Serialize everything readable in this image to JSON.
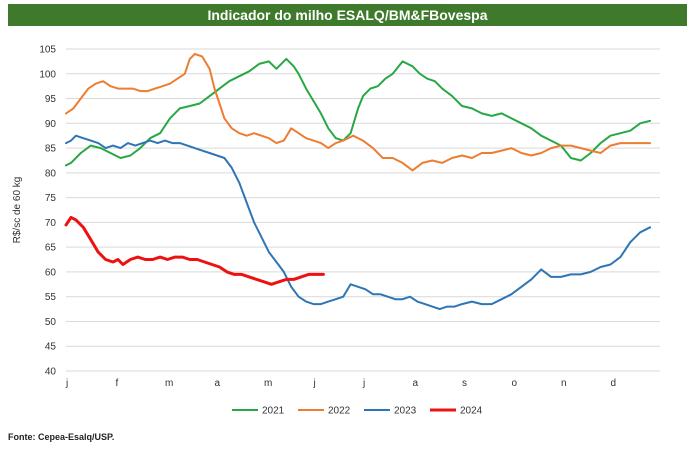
{
  "title": "Indicador do milho ESALQ/BM&FBovespa",
  "source": "Fonte: Cepea-Esalq/USP.",
  "chart_data": {
    "type": "line",
    "ylabel": "R$/sc de 60 kg",
    "xlabel": "",
    "ylim": [
      40,
      105
    ],
    "yticks": [
      40,
      45,
      50,
      55,
      60,
      65,
      70,
      75,
      80,
      85,
      90,
      95,
      100,
      105
    ],
    "xlim": [
      0,
      12
    ],
    "x_tick_labels": [
      "j",
      "f",
      "m",
      "a",
      "m",
      "j",
      "j",
      "a",
      "s",
      "o",
      "n",
      "d"
    ],
    "grid": "horizontal",
    "legend": "bottom",
    "series": [
      {
        "name": "2021",
        "color": "#27a844",
        "width": 2,
        "x": [
          0,
          0.1,
          0.3,
          0.5,
          0.7,
          0.9,
          1.1,
          1.3,
          1.5,
          1.7,
          1.9,
          2.1,
          2.3,
          2.5,
          2.7,
          2.9,
          3.1,
          3.3,
          3.5,
          3.7,
          3.9,
          4.1,
          4.25,
          4.45,
          4.6,
          4.7,
          4.85,
          5.0,
          5.15,
          5.3,
          5.45,
          5.6,
          5.75,
          5.9,
          6.0,
          6.15,
          6.3,
          6.45,
          6.6,
          6.8,
          7.0,
          7.15,
          7.3,
          7.45,
          7.6,
          7.8,
          8.0,
          8.2,
          8.4,
          8.6,
          8.8,
          9.0,
          9.2,
          9.4,
          9.6,
          9.8,
          10.0,
          10.2,
          10.4,
          10.6,
          10.8,
          11.0,
          11.2,
          11.4,
          11.6,
          11.8
        ],
        "y": [
          81.5,
          82,
          84,
          85.5,
          85,
          84,
          83,
          83.5,
          85,
          87,
          88,
          91,
          93,
          93.5,
          94,
          95.5,
          97,
          98.5,
          99.5,
          100.5,
          102,
          102.5,
          101,
          103,
          101.5,
          100,
          97,
          94.5,
          92,
          89,
          87,
          86.5,
          88,
          93,
          95.5,
          97,
          97.5,
          99,
          100,
          102.5,
          101.5,
          100,
          99,
          98.5,
          97,
          95.5,
          93.5,
          93,
          92,
          91.5,
          92,
          91,
          90,
          89,
          87.5,
          86.5,
          85.5,
          83,
          82.5,
          84,
          86,
          87.5,
          88,
          88.5,
          90,
          90.5
        ]
      },
      {
        "name": "2022",
        "color": "#ed7d31",
        "width": 2,
        "x": [
          0,
          0.15,
          0.3,
          0.45,
          0.6,
          0.75,
          0.9,
          1.05,
          1.2,
          1.35,
          1.5,
          1.65,
          1.8,
          1.95,
          2.1,
          2.25,
          2.4,
          2.5,
          2.6,
          2.75,
          2.9,
          3.0,
          3.1,
          3.2,
          3.35,
          3.5,
          3.65,
          3.8,
          3.95,
          4.1,
          4.25,
          4.4,
          4.55,
          4.7,
          4.85,
          5.0,
          5.15,
          5.3,
          5.45,
          5.6,
          5.8,
          6.0,
          6.2,
          6.4,
          6.6,
          6.8,
          7.0,
          7.2,
          7.4,
          7.6,
          7.8,
          8.0,
          8.2,
          8.4,
          8.6,
          8.8,
          9.0,
          9.2,
          9.4,
          9.6,
          9.8,
          10.0,
          10.2,
          10.4,
          10.6,
          10.8,
          11.0,
          11.2,
          11.4,
          11.6,
          11.8
        ],
        "y": [
          92,
          93,
          95,
          97,
          98,
          98.5,
          97.5,
          97,
          97,
          97,
          96.5,
          96.5,
          97,
          97.5,
          98,
          99,
          100,
          103,
          104,
          103.5,
          101,
          97,
          94,
          91,
          89,
          88,
          87.5,
          88,
          87.5,
          87,
          86,
          86.5,
          89,
          88,
          87,
          86.5,
          86,
          85,
          86,
          86.5,
          87.5,
          86.5,
          85,
          83,
          83,
          82,
          80.5,
          82,
          82.5,
          82,
          83,
          83.5,
          83,
          84,
          84,
          84.5,
          85,
          84,
          83.5,
          84,
          85,
          85.5,
          85.5,
          85,
          84.5,
          84,
          85.5,
          86,
          86,
          86,
          86
        ]
      },
      {
        "name": "2023",
        "color": "#2e75b6",
        "width": 2,
        "x": [
          0,
          0.1,
          0.2,
          0.35,
          0.5,
          0.65,
          0.8,
          0.95,
          1.1,
          1.25,
          1.4,
          1.55,
          1.7,
          1.85,
          2.0,
          2.15,
          2.3,
          2.45,
          2.6,
          2.75,
          2.9,
          3.05,
          3.2,
          3.35,
          3.5,
          3.65,
          3.8,
          3.95,
          4.1,
          4.25,
          4.4,
          4.55,
          4.7,
          4.85,
          5.0,
          5.15,
          5.3,
          5.45,
          5.6,
          5.75,
          5.9,
          6.05,
          6.2,
          6.35,
          6.5,
          6.65,
          6.8,
          6.95,
          7.1,
          7.25,
          7.4,
          7.55,
          7.7,
          7.85,
          8.0,
          8.2,
          8.4,
          8.6,
          8.8,
          9.0,
          9.2,
          9.4,
          9.6,
          9.8,
          10.0,
          10.2,
          10.4,
          10.6,
          10.8,
          11.0,
          11.2,
          11.4,
          11.6,
          11.8
        ],
        "y": [
          86,
          86.5,
          87.5,
          87,
          86.5,
          86,
          85,
          85.5,
          85,
          86,
          85.5,
          86,
          86.5,
          86,
          86.5,
          86,
          86,
          85.5,
          85,
          84.5,
          84,
          83.5,
          83,
          81,
          78,
          74,
          70,
          67,
          64,
          62,
          60,
          57,
          55,
          54,
          53.5,
          53.5,
          54,
          54.5,
          55,
          57.5,
          57,
          56.5,
          55.5,
          55.5,
          55,
          54.5,
          54.5,
          55,
          54,
          53.5,
          53,
          52.5,
          53,
          53,
          53.5,
          54,
          53.5,
          53.5,
          54.5,
          55.5,
          57,
          58.5,
          60.5,
          59,
          59,
          59.5,
          59.5,
          60,
          61,
          61.5,
          63,
          66,
          68,
          69
        ]
      },
      {
        "name": "2024",
        "color": "#ee1111",
        "width": 3,
        "x": [
          0,
          0.1,
          0.2,
          0.35,
          0.5,
          0.65,
          0.8,
          0.95,
          1.05,
          1.15,
          1.3,
          1.45,
          1.6,
          1.75,
          1.9,
          2.05,
          2.2,
          2.35,
          2.5,
          2.65,
          2.8,
          2.95,
          3.1,
          3.25,
          3.4,
          3.55,
          3.7,
          3.85,
          4.0,
          4.15,
          4.3,
          4.45,
          4.6,
          4.75,
          4.9,
          5.05,
          5.2
        ],
        "y": [
          69.5,
          71,
          70.5,
          69,
          66.5,
          64,
          62.5,
          62,
          62.5,
          61.5,
          62.5,
          63,
          62.5,
          62.5,
          63,
          62.5,
          63,
          63,
          62.5,
          62.5,
          62,
          61.5,
          61,
          60,
          59.5,
          59.5,
          59,
          58.5,
          58,
          57.5,
          58,
          58.5,
          58.5,
          59,
          59.5,
          59.5,
          59.5
        ]
      }
    ]
  }
}
